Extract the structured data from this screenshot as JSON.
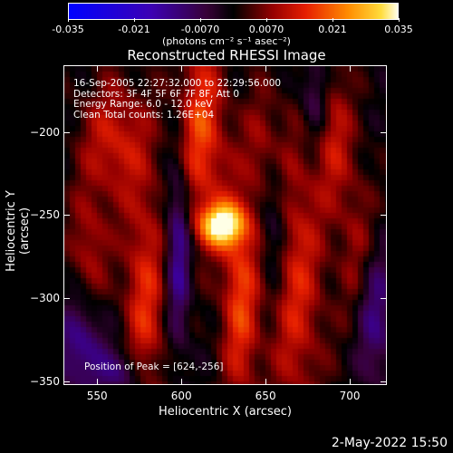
{
  "chart_data": {
    "type": "heatmap",
    "title": "Reconstructed RHESSI Image",
    "xlabel": "Heliocentric X (arcsec)",
    "ylabel": "Heliocentric Y (arcsec)",
    "xlim": [
      530,
      722
    ],
    "ylim": [
      -352,
      -160
    ],
    "xticks": [
      550,
      600,
      650,
      700
    ],
    "yticks": [
      -200,
      -250,
      -300,
      -350
    ],
    "colorbar": {
      "min": -0.035,
      "max": 0.035,
      "tick_labels": [
        "-0.035",
        "-0.021",
        "-0.0070",
        "0.0070",
        "0.021",
        "0.035"
      ],
      "tick_values": [
        -0.035,
        -0.021,
        -0.007,
        0.007,
        0.021,
        0.035
      ],
      "units": "(photons cm⁻² s⁻¹ asec⁻²)"
    },
    "annotations": [
      "16-Sep-2005 22:27:32.000 to 22:29:56.000",
      "Detectors: 3F 4F 5F 6F 7F 8F, Att 0",
      "Energy Range: 6.0 - 12.0 keV",
      "Clean    Total counts: 1.26E+04"
    ],
    "peak_label": "Position of Peak = [624,-256]",
    "peak": {
      "x": 624,
      "y": -256,
      "value": 0.035
    },
    "features": [
      {
        "x": 624,
        "y": -256,
        "sx": 9,
        "sy": 9,
        "amp": 0.034
      },
      {
        "x": 612,
        "y": -200,
        "sx": 10,
        "sy": 40,
        "amp": 0.018
      },
      {
        "x": 635,
        "y": -300,
        "sx": 8,
        "sy": 45,
        "amp": 0.017
      },
      {
        "x": 578,
        "y": -300,
        "sx": 9,
        "sy": 50,
        "amp": 0.015
      },
      {
        "x": 560,
        "y": -205,
        "sx": 14,
        "sy": 25,
        "amp": 0.013
      },
      {
        "x": 545,
        "y": -270,
        "sx": 8,
        "sy": 25,
        "amp": 0.01
      },
      {
        "x": 668,
        "y": -290,
        "sx": 12,
        "sy": 60,
        "amp": 0.014
      },
      {
        "x": 690,
        "y": -200,
        "sx": 8,
        "sy": 30,
        "amp": 0.012
      },
      {
        "x": 705,
        "y": -270,
        "sx": 8,
        "sy": 35,
        "amp": 0.009
      },
      {
        "x": 650,
        "y": -210,
        "sx": 8,
        "sy": 25,
        "amp": 0.01
      },
      {
        "x": 598,
        "y": -270,
        "sx": 5,
        "sy": 40,
        "amp": -0.016
      },
      {
        "x": 655,
        "y": -250,
        "sx": 6,
        "sy": 35,
        "amp": -0.012
      },
      {
        "x": 540,
        "y": -330,
        "sx": 10,
        "sy": 20,
        "amp": -0.014
      },
      {
        "x": 715,
        "y": -310,
        "sx": 8,
        "sy": 30,
        "amp": -0.013
      },
      {
        "x": 680,
        "y": -180,
        "sx": 6,
        "sy": 20,
        "amp": -0.012
      },
      {
        "x": 565,
        "y": -345,
        "sx": 10,
        "sy": 10,
        "amp": -0.012
      }
    ]
  },
  "footer_date": "2-May-2022 15:50"
}
